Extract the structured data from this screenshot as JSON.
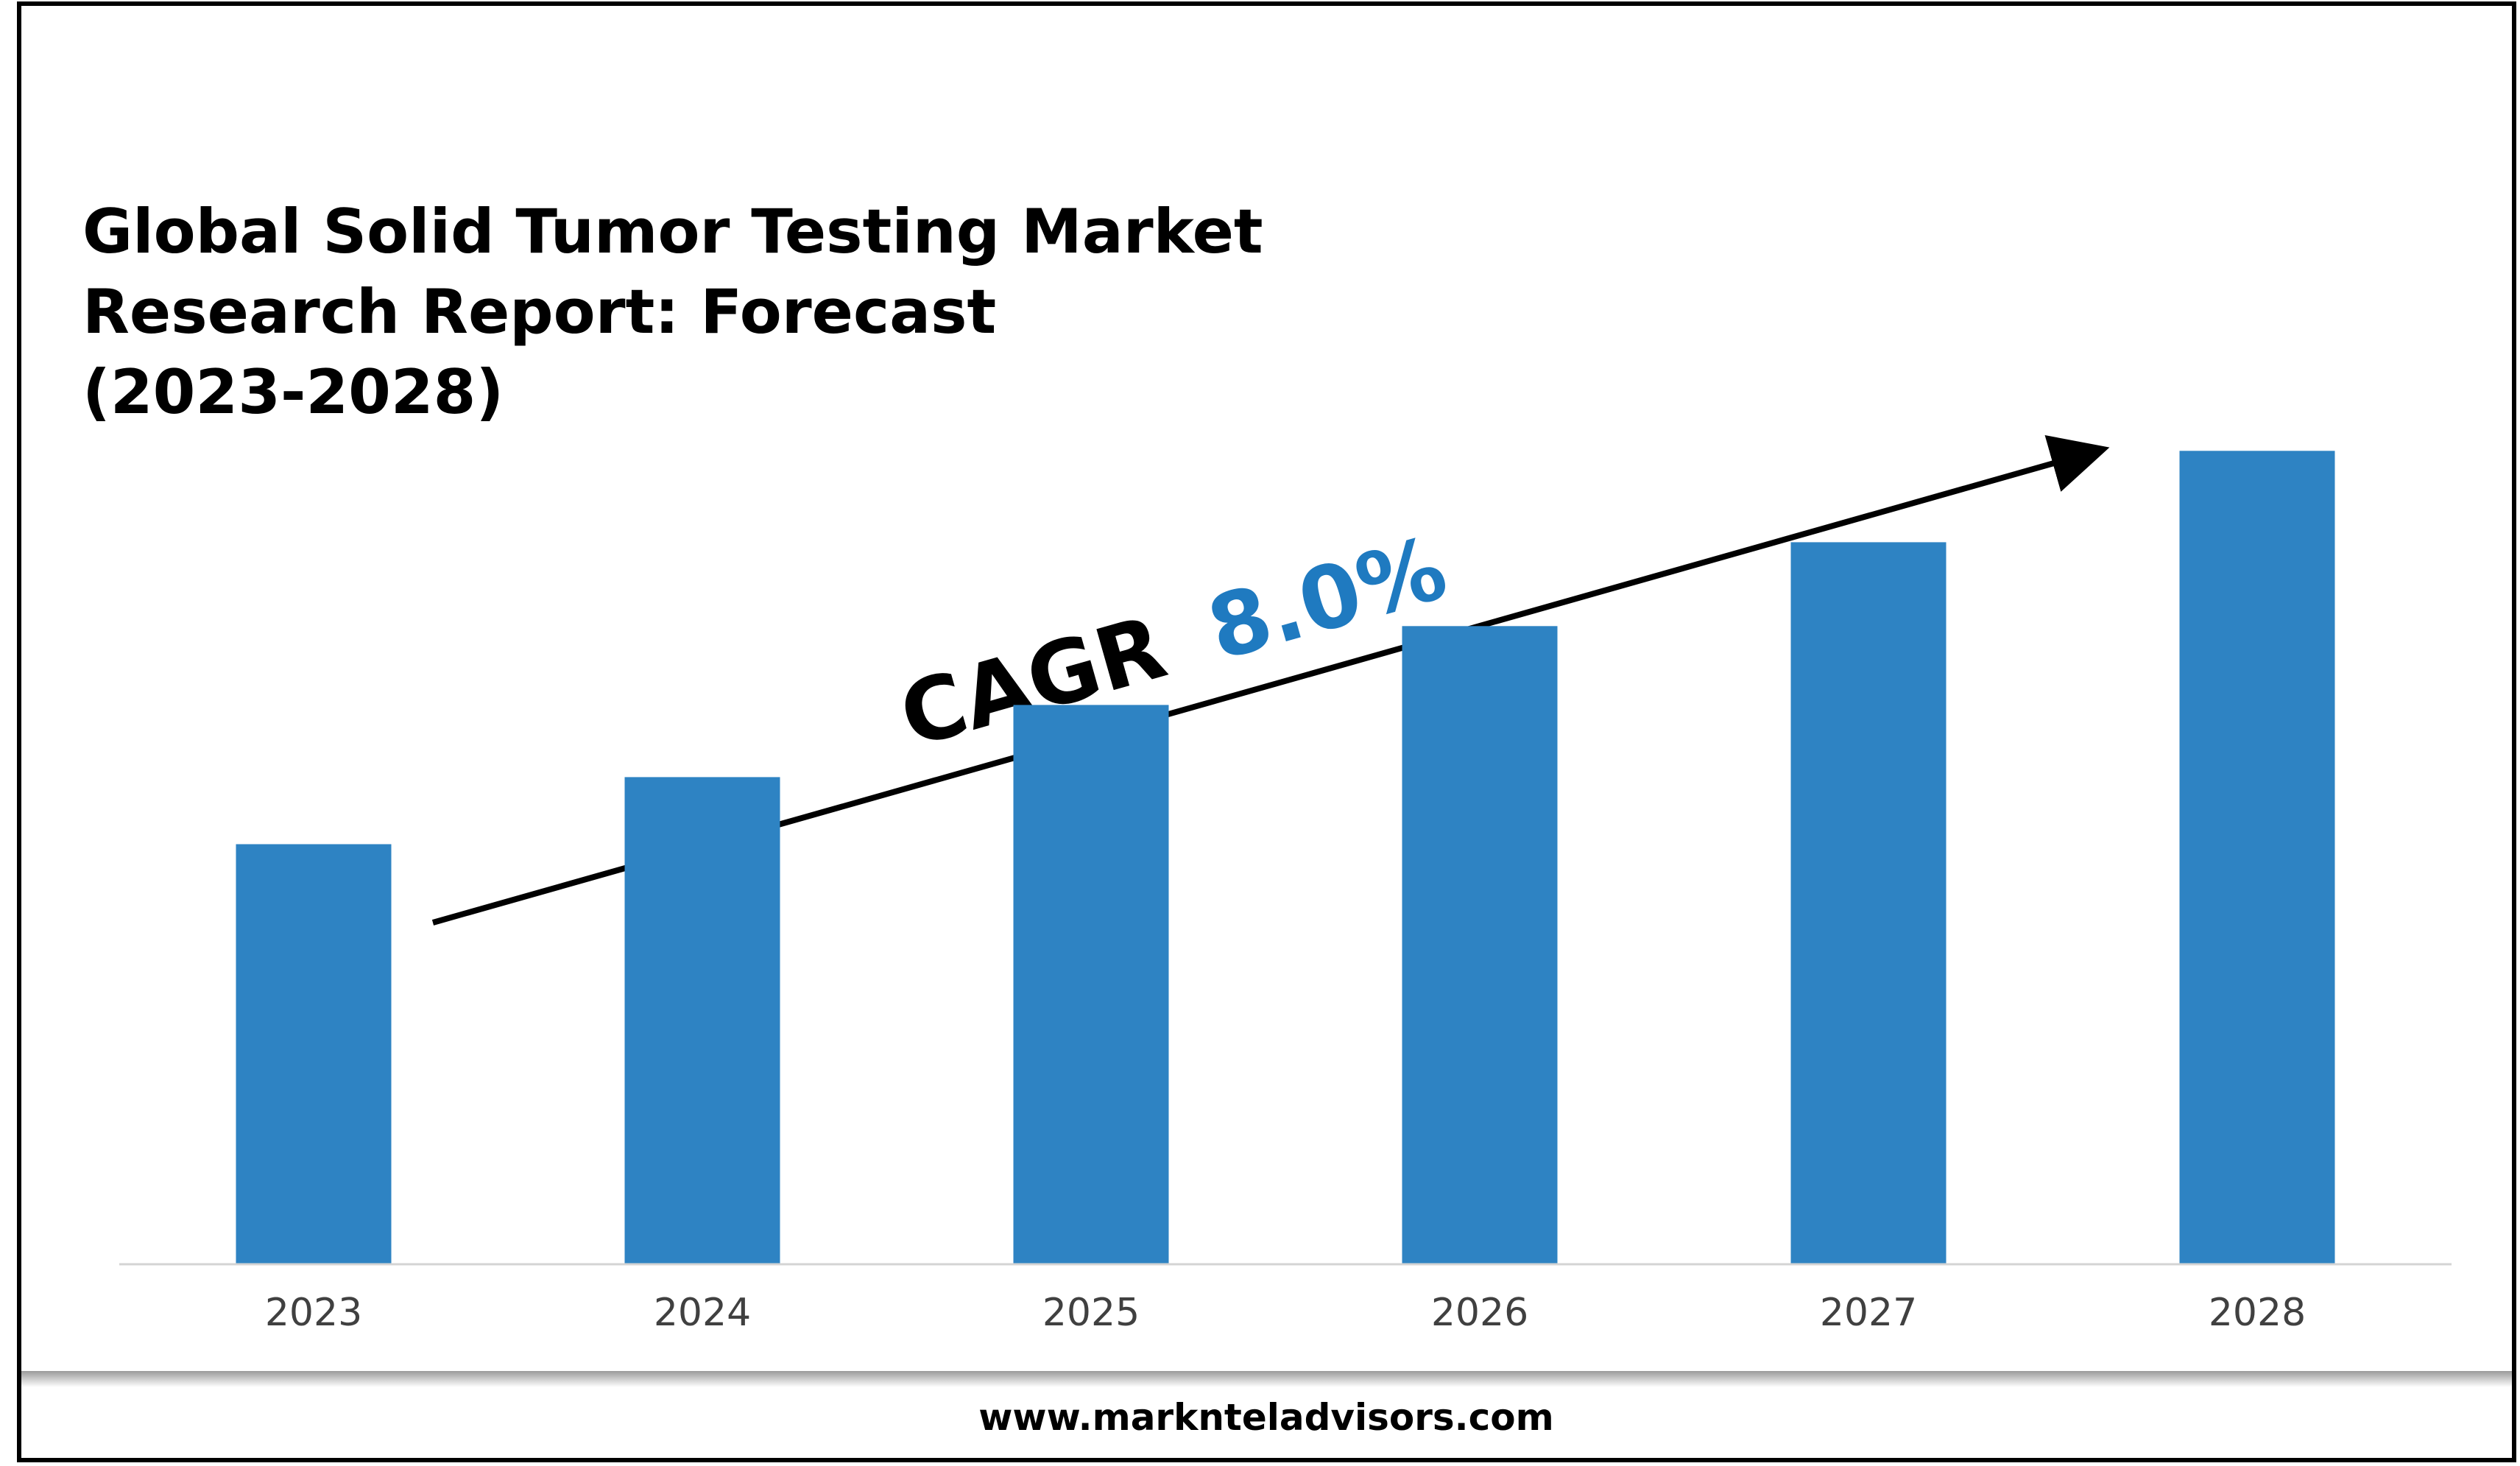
{
  "chart_data": {
    "type": "bar",
    "title": "Global Solid Tumor Testing Market Research Report: Forecast (2023-2028)",
    "title_lines": [
      "Global Solid Tumor Testing Market",
      "Research Report: Forecast",
      "(2023-2028)"
    ],
    "categories": [
      "2023",
      "2024",
      "2025",
      "2026",
      "2027",
      "2028"
    ],
    "values": [
      1.0,
      1.08,
      1.166,
      1.26,
      1.36,
      1.469
    ],
    "value_axis_shown": false,
    "ylim": [
      0.5,
      1.55
    ],
    "grid": false,
    "legend": "none",
    "xlabel": "",
    "ylabel": "",
    "annotation": {
      "prefix": "CAGR",
      "value": "8.0%"
    }
  },
  "footer": {
    "url": "www.marknteladvisors.com"
  },
  "colors": {
    "bar": "#2e83c3",
    "cagr_value": "#1f7ac0",
    "text": "#000000",
    "axis_tick": "#404040",
    "frame": "#000000",
    "divider": "#b0b0b0"
  }
}
